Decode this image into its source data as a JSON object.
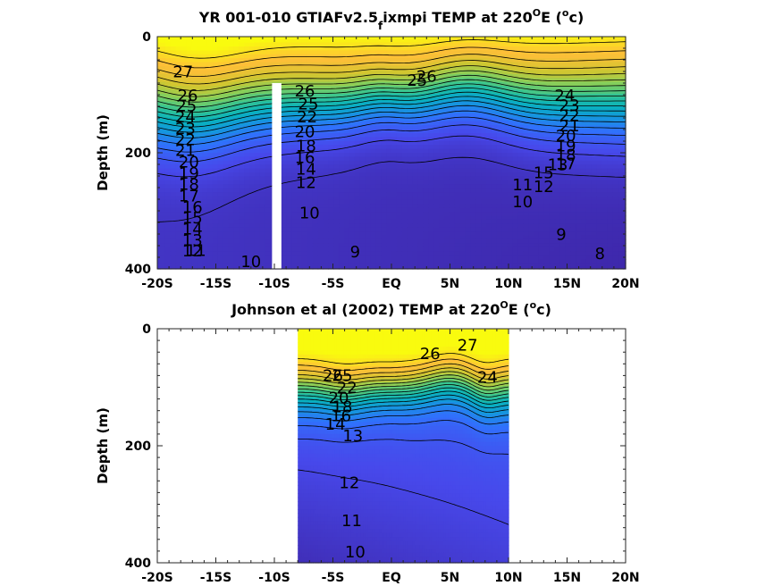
{
  "chart_data": [
    {
      "type": "contour",
      "title_prefix": "YR 001-010 GTIAFv2.5",
      "title_sub": "f",
      "title_suffix": "ixmpi TEMP at 220",
      "title_sup1": "O",
      "title_mid": "E (",
      "title_sup2": "o",
      "title_end": "c)",
      "ylabel": "Depth (m)",
      "xlabel": "",
      "x_ticks": [
        "-20S",
        "-15S",
        "-10S",
        "-5S",
        "EQ",
        "5N",
        "10N",
        "15N",
        "20N"
      ],
      "x_tick_values": [
        -20,
        -15,
        -10,
        -5,
        0,
        5,
        10,
        15,
        20
      ],
      "y_ticks": [
        "0",
        "200",
        "400"
      ],
      "y_tick_values": [
        0,
        200,
        400
      ],
      "xlim": [
        -20,
        20
      ],
      "ylim": [
        400,
        0
      ],
      "masked_column": {
        "lat_from": -10.2,
        "lat_to": -9.4,
        "depth_from": 80,
        "depth_to": 400
      },
      "colormap_range": [
        8,
        28
      ],
      "contour_levels": [
        8,
        9,
        10,
        11,
        12,
        13,
        14,
        15,
        16,
        17,
        18,
        19,
        20,
        21,
        22,
        23,
        24,
        25,
        26,
        27
      ],
      "contour_labels": [
        {
          "text": "27",
          "lat": -17.8,
          "depth": 62
        },
        {
          "text": "26",
          "lat": -17.4,
          "depth": 103
        },
        {
          "text": "25",
          "lat": -17.5,
          "depth": 121
        },
        {
          "text": "24",
          "lat": -17.6,
          "depth": 140
        },
        {
          "text": "23",
          "lat": -17.6,
          "depth": 160
        },
        {
          "text": "22",
          "lat": -17.6,
          "depth": 179
        },
        {
          "text": "21",
          "lat": -17.6,
          "depth": 198
        },
        {
          "text": "20",
          "lat": -17.3,
          "depth": 218
        },
        {
          "text": "19",
          "lat": -17.3,
          "depth": 237
        },
        {
          "text": "18",
          "lat": -17.3,
          "depth": 256
        },
        {
          "text": "17",
          "lat": -17.3,
          "depth": 276
        },
        {
          "text": "16",
          "lat": -17.0,
          "depth": 295
        },
        {
          "text": "15",
          "lat": -17.0,
          "depth": 314
        },
        {
          "text": "14",
          "lat": -17.0,
          "depth": 333
        },
        {
          "text": "13",
          "lat": -17.0,
          "depth": 352
        },
        {
          "text": "12",
          "lat": -17.0,
          "depth": 371
        },
        {
          "text": "11",
          "lat": -16.7,
          "depth": 370
        },
        {
          "text": "10",
          "lat": -12.0,
          "depth": 389
        },
        {
          "text": "26",
          "lat": -7.4,
          "depth": 95
        },
        {
          "text": "25",
          "lat": -7.1,
          "depth": 118
        },
        {
          "text": "22",
          "lat": -7.2,
          "depth": 140
        },
        {
          "text": "20",
          "lat": -7.4,
          "depth": 165
        },
        {
          "text": "18",
          "lat": -7.3,
          "depth": 190
        },
        {
          "text": "16",
          "lat": -7.4,
          "depth": 210
        },
        {
          "text": "14",
          "lat": -7.3,
          "depth": 230
        },
        {
          "text": "12",
          "lat": -7.3,
          "depth": 253
        },
        {
          "text": "10",
          "lat": -7.0,
          "depth": 305
        },
        {
          "text": "9",
          "lat": -3.1,
          "depth": 372
        },
        {
          "text": "25",
          "lat": 2.2,
          "depth": 77
        },
        {
          "text": "26",
          "lat": 3.0,
          "depth": 70
        },
        {
          "text": "24",
          "lat": 14.8,
          "depth": 103
        },
        {
          "text": "23",
          "lat": 15.2,
          "depth": 120
        },
        {
          "text": "22",
          "lat": 15.2,
          "depth": 138
        },
        {
          "text": "21",
          "lat": 15.2,
          "depth": 155
        },
        {
          "text": "20",
          "lat": 14.9,
          "depth": 172
        },
        {
          "text": "19",
          "lat": 14.9,
          "depth": 190
        },
        {
          "text": "18",
          "lat": 14.9,
          "depth": 205
        },
        {
          "text": "17",
          "lat": 14.9,
          "depth": 221
        },
        {
          "text": "15",
          "lat": 13.0,
          "depth": 236
        },
        {
          "text": "13",
          "lat": 14.2,
          "depth": 222
        },
        {
          "text": "12",
          "lat": 13.0,
          "depth": 260
        },
        {
          "text": "11",
          "lat": 11.2,
          "depth": 257
        },
        {
          "text": "10",
          "lat": 11.2,
          "depth": 286
        },
        {
          "text": "9",
          "lat": 14.5,
          "depth": 342
        },
        {
          "text": "8",
          "lat": 17.8,
          "depth": 375
        }
      ]
    },
    {
      "type": "contour",
      "title_prefix": "Johnson et al (2002) TEMP at 220",
      "title_sup1": "O",
      "title_mid": "E (",
      "title_sup2": "o",
      "title_end": "c)",
      "ylabel": "Depth (m)",
      "xlabel": "",
      "x_ticks": [
        "-20S",
        "-15S",
        "-10S",
        "-5S",
        "EQ",
        "5N",
        "10N",
        "15N",
        "20N"
      ],
      "x_tick_values": [
        -20,
        -15,
        -10,
        -5,
        0,
        5,
        10,
        15,
        20
      ],
      "y_ticks": [
        "0",
        "200",
        "400"
      ],
      "y_tick_values": [
        0,
        200,
        400
      ],
      "xlim": [
        -20,
        20
      ],
      "ylim": [
        400,
        0
      ],
      "data_extent_lat": [
        -8,
        10
      ],
      "colormap_range": [
        8,
        28
      ],
      "contour_levels": [
        10,
        11,
        12,
        13,
        14,
        15,
        16,
        17,
        18,
        19,
        20,
        21,
        22,
        23,
        24,
        25,
        26,
        27
      ],
      "contour_labels": [
        {
          "text": "26",
          "lat": -5.0,
          "depth": 82
        },
        {
          "text": "25",
          "lat": -4.2,
          "depth": 82
        },
        {
          "text": "22",
          "lat": -3.8,
          "depth": 102
        },
        {
          "text": "20",
          "lat": -4.5,
          "depth": 120
        },
        {
          "text": "18",
          "lat": -4.2,
          "depth": 135
        },
        {
          "text": "16",
          "lat": -4.3,
          "depth": 150
        },
        {
          "text": "14",
          "lat": -4.8,
          "depth": 165
        },
        {
          "text": "13",
          "lat": -3.3,
          "depth": 185
        },
        {
          "text": "12",
          "lat": -3.6,
          "depth": 265
        },
        {
          "text": "11",
          "lat": -3.4,
          "depth": 330
        },
        {
          "text": "10",
          "lat": -3.1,
          "depth": 383
        },
        {
          "text": "26",
          "lat": 3.3,
          "depth": 44
        },
        {
          "text": "27",
          "lat": 6.5,
          "depth": 30
        },
        {
          "text": "24",
          "lat": 8.2,
          "depth": 85
        }
      ]
    }
  ]
}
